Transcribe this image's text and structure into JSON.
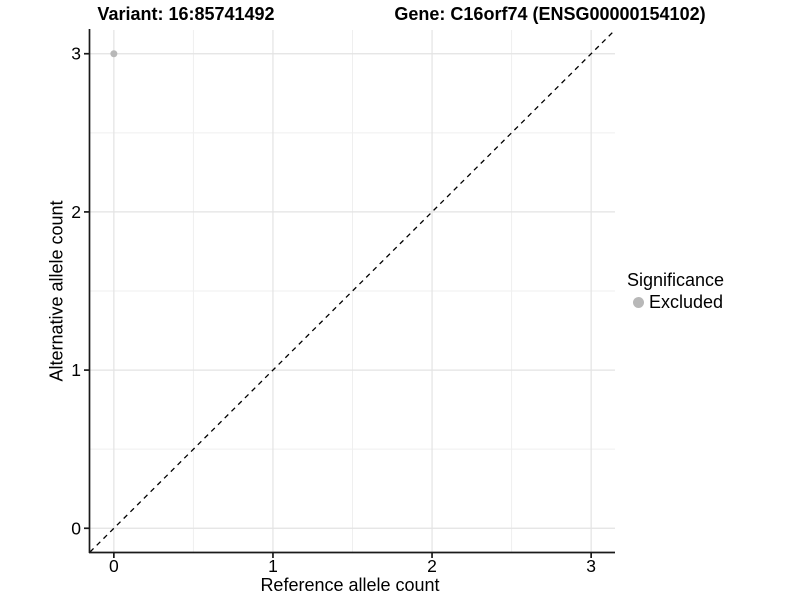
{
  "header": {
    "variant_title": "Variant: 16:85741492",
    "gene_title": "Gene: C16orf74 (ENSG00000154102)"
  },
  "chart_data": {
    "type": "scatter",
    "xlabel": "Reference allele count",
    "ylabel": "Alternative allele count",
    "xlim": [
      -0.15,
      3.15
    ],
    "ylim": [
      -0.15,
      3.15
    ],
    "x_ticks": [
      0,
      1,
      2,
      3
    ],
    "y_ticks": [
      0,
      1,
      2,
      3
    ],
    "x_minor_ticks": [
      0.5,
      1.5,
      2.5
    ],
    "y_minor_ticks": [
      0.5,
      1.5,
      2.5
    ],
    "grid": true,
    "points": [
      {
        "x": 0,
        "y": 3,
        "series": "Excluded"
      }
    ],
    "identity_line": {
      "style": "dashed",
      "from": [
        -0.15,
        -0.15
      ],
      "to": [
        3.15,
        3.15
      ],
      "color": "#000000"
    },
    "legend": {
      "position": "right",
      "title": "Significance",
      "items": [
        {
          "label": "Excluded",
          "color": "#b8b8b8"
        }
      ]
    },
    "colors": {
      "background": "#ffffff",
      "grid_major": "#e3e3e3",
      "grid_minor": "#efefef",
      "axis_line": "#1a1a1a",
      "tick_text": "#000000",
      "point": "#b8b8b8"
    }
  }
}
